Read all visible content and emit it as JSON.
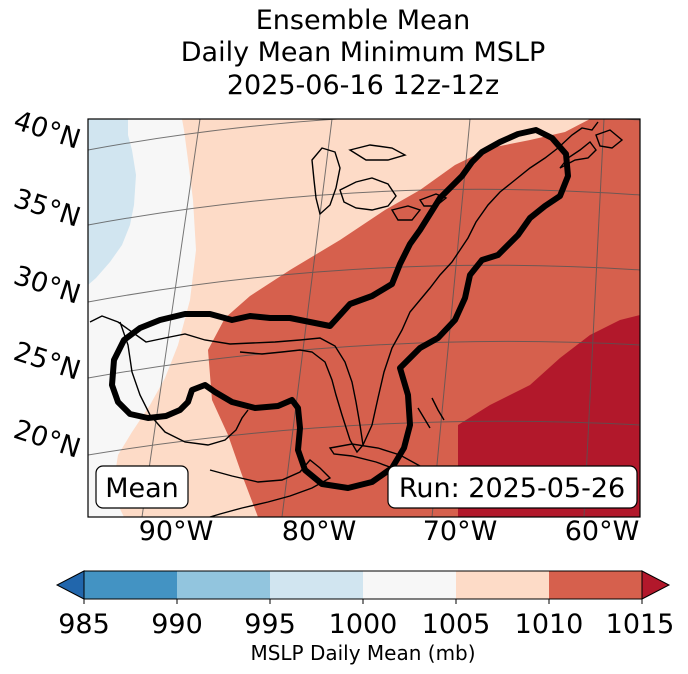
{
  "title_lines": [
    "Ensemble Mean",
    "Daily Mean Minimum MSLP",
    "2025-06-16 12z-12z"
  ],
  "map": {
    "lat_labels": [
      "40°N",
      "35°N",
      "30°N",
      "25°N",
      "20°N"
    ],
    "lon_labels": [
      "90°W",
      "80°W",
      "70°W",
      "60°W"
    ],
    "left_box_label": "Mean",
    "right_box_label": "Run: 2025-05-26",
    "contour_color": "#000000",
    "coastline_color": "#000000"
  },
  "colorbar": {
    "ticks": [
      "985",
      "990",
      "995",
      "1000",
      "1005",
      "1010",
      "1015"
    ],
    "title": "MSLP Daily Mean (mb)",
    "under_color": "#2166ac",
    "over_color": "#b2182b",
    "bins": [
      {
        "range": "985-990",
        "color": "#4393c3"
      },
      {
        "range": "990-995",
        "color": "#92c5de"
      },
      {
        "range": "995-1000",
        "color": "#d1e5f0"
      },
      {
        "range": "1000-1005",
        "color": "#f7f7f7"
      },
      {
        "range": "1005-1010",
        "color": "#fddbc7"
      },
      {
        "range": "1010-1015",
        "color": "#d6604d"
      }
    ]
  },
  "field_colors": {
    "light_blue": "#d1e5f0",
    "near_white": "#f7f7f7",
    "light_peach": "#fddbc7",
    "red": "#d6604d",
    "dark_red": "#b2182b"
  }
}
